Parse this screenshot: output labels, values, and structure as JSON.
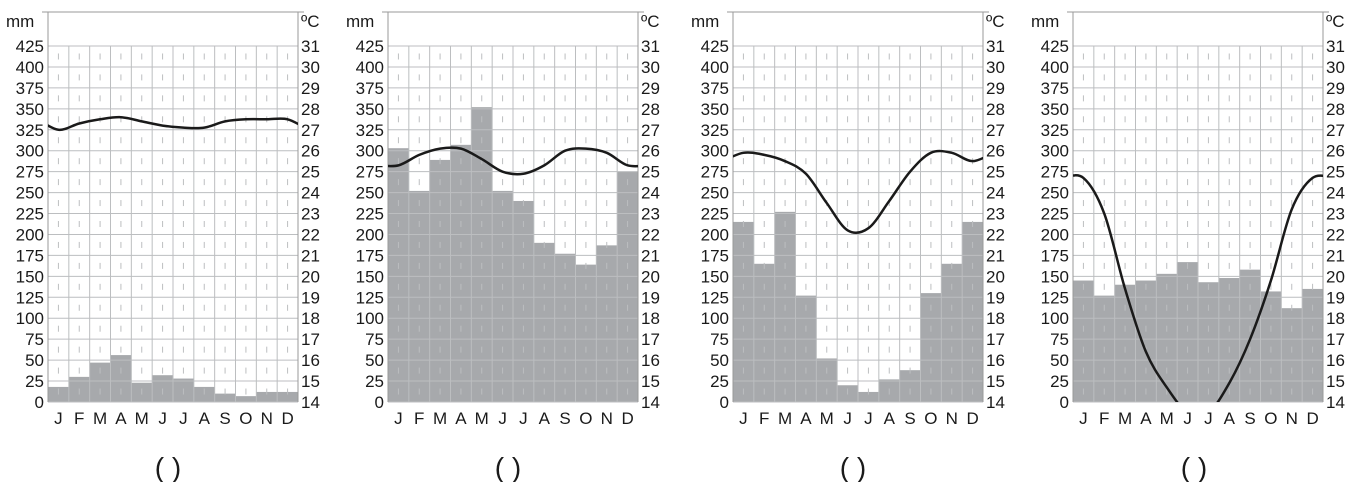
{
  "colors": {
    "bar": "#a7a9ac",
    "grid": "#bcbec0",
    "line": "#1a1a1a",
    "frame": "#9a9a9a"
  },
  "captions": [
    "(    )",
    "(    )",
    "(    )",
    "(    )"
  ],
  "chart_data": [
    {
      "type": "bar",
      "categories": [
        "J",
        "F",
        "M",
        "A",
        "M",
        "J",
        "J",
        "A",
        "S",
        "O",
        "N",
        "D"
      ],
      "ylabel": "mm",
      "ylabel_right": "ºC",
      "ylim": [
        0,
        425
      ],
      "y2lim": [
        14,
        31
      ],
      "yticks": [
        "0",
        "25",
        "50",
        "75",
        "100",
        "125",
        "150",
        "175",
        "200",
        "225",
        "250",
        "275",
        "300",
        "325",
        "350",
        "375",
        "400",
        "425"
      ],
      "y2ticks": [
        "14",
        "15",
        "16",
        "17",
        "18",
        "19",
        "20",
        "21",
        "22",
        "23",
        "24",
        "25",
        "26",
        "27",
        "28",
        "29",
        "30",
        "31"
      ],
      "grid": true,
      "series": [
        {
          "kind": "bar",
          "values": [
            18,
            30,
            47,
            56,
            23,
            32,
            28,
            18,
            10,
            7,
            12,
            12
          ]
        },
        {
          "kind": "line",
          "values": [
            27,
            27.3,
            27.5,
            27.6,
            27.4,
            27.2,
            27.1,
            27.1,
            27.4,
            27.5,
            27.5,
            27.5
          ]
        }
      ]
    },
    {
      "type": "bar",
      "categories": [
        "J",
        "F",
        "M",
        "A",
        "M",
        "J",
        "J",
        "A",
        "S",
        "O",
        "N",
        "D"
      ],
      "ylabel": "mm",
      "ylabel_right": "ºC",
      "ylim": [
        0,
        425
      ],
      "y2lim": [
        14,
        31
      ],
      "yticks": [
        "0",
        "25",
        "50",
        "75",
        "100",
        "125",
        "150",
        "175",
        "200",
        "225",
        "250",
        "275",
        "300",
        "325",
        "350",
        "375",
        "400",
        "425"
      ],
      "y2ticks": [
        "14",
        "15",
        "16",
        "17",
        "18",
        "19",
        "20",
        "21",
        "22",
        "23",
        "24",
        "25",
        "26",
        "27",
        "28",
        "29",
        "30",
        "31"
      ],
      "grid": true,
      "series": [
        {
          "kind": "bar",
          "values": [
            303,
            252,
            289,
            307,
            352,
            252,
            240,
            190,
            177,
            164,
            187,
            275
          ]
        },
        {
          "kind": "line",
          "values": [
            25.3,
            25.8,
            26.1,
            26.1,
            25.6,
            25.0,
            24.9,
            25.3,
            26.0,
            26.1,
            25.9,
            25.3
          ]
        }
      ]
    },
    {
      "type": "bar",
      "categories": [
        "J",
        "F",
        "M",
        "A",
        "M",
        "J",
        "J",
        "A",
        "S",
        "O",
        "N",
        "D"
      ],
      "ylabel": "mm",
      "ylabel_right": "ºC",
      "ylim": [
        0,
        425
      ],
      "y2lim": [
        14,
        31
      ],
      "yticks": [
        "0",
        "25",
        "50",
        "75",
        "100",
        "125",
        "150",
        "175",
        "200",
        "225",
        "250",
        "275",
        "300",
        "325",
        "350",
        "375",
        "400",
        "425"
      ],
      "y2ticks": [
        "14",
        "15",
        "16",
        "17",
        "18",
        "19",
        "20",
        "21",
        "22",
        "23",
        "24",
        "25",
        "26",
        "27",
        "28",
        "29",
        "30",
        "31"
      ],
      "grid": true,
      "series": [
        {
          "kind": "bar",
          "values": [
            215,
            165,
            227,
            127,
            52,
            20,
            12,
            27,
            38,
            130,
            165,
            215
          ]
        },
        {
          "kind": "line",
          "values": [
            25.9,
            25.8,
            25.5,
            24.9,
            23.5,
            22.2,
            22.3,
            23.6,
            25.0,
            25.9,
            25.9,
            25.5
          ]
        }
      ]
    },
    {
      "type": "bar",
      "categories": [
        "J",
        "F",
        "M",
        "A",
        "M",
        "J",
        "J",
        "A",
        "S",
        "O",
        "N",
        "D"
      ],
      "ylabel": "mm",
      "ylabel_right": "ºC",
      "ylim": [
        0,
        425
      ],
      "y2lim": [
        14,
        31
      ],
      "yticks": [
        "0",
        "25",
        "50",
        "75",
        "100",
        "125",
        "150",
        "175",
        "200",
        "225",
        "250",
        "275",
        "300",
        "325",
        "350",
        "375",
        "400",
        "425"
      ],
      "y2ticks": [
        "14",
        "15",
        "16",
        "17",
        "18",
        "19",
        "20",
        "21",
        "22",
        "23",
        "24",
        "25",
        "26",
        "27",
        "28",
        "29",
        "30",
        "31"
      ],
      "grid": true,
      "series": [
        {
          "kind": "bar",
          "values": [
            145,
            127,
            140,
            145,
            153,
            167,
            143,
            148,
            158,
            132,
            112,
            135
          ]
        },
        {
          "kind": "line",
          "values": [
            24.7,
            23,
            19.4,
            16.4,
            14.7,
            13.5,
            13.5,
            14.9,
            17.0,
            19.8,
            23.2,
            24.7
          ]
        }
      ]
    }
  ]
}
